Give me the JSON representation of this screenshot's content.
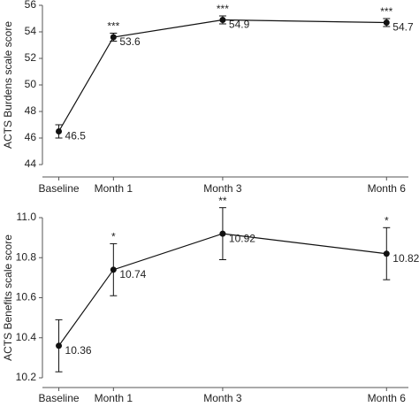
{
  "chart_data": [
    {
      "type": "line",
      "y_label": "ACTS Burdens scale score",
      "x": [
        0,
        1,
        3,
        6
      ],
      "xticks": [
        {
          "value": 0,
          "label": "Baseline"
        },
        {
          "value": 1,
          "label": "Month 1"
        },
        {
          "value": 3,
          "label": "Month 3"
        },
        {
          "value": 6,
          "label": "Month 6"
        }
      ],
      "xlim": [
        -0.3,
        6.4
      ],
      "values": [
        46.5,
        53.6,
        54.9,
        54.7
      ],
      "errors": [
        0.5,
        0.3,
        0.3,
        0.3
      ],
      "significance": [
        null,
        "***",
        "***",
        "***"
      ],
      "ylim": [
        44,
        56
      ],
      "yticks": [
        44,
        46,
        48,
        50,
        52,
        54,
        56
      ],
      "color": "#111111"
    },
    {
      "type": "line",
      "y_label": "ACTS Benefits scale score",
      "x": [
        0,
        1,
        3,
        6
      ],
      "xticks": [
        {
          "value": 0,
          "label": "Baseline"
        },
        {
          "value": 1,
          "label": "Month 1"
        },
        {
          "value": 3,
          "label": "Month 3"
        },
        {
          "value": 6,
          "label": "Month 6"
        }
      ],
      "xlim": [
        -0.3,
        6.4
      ],
      "values": [
        10.36,
        10.74,
        10.92,
        10.82
      ],
      "errors": [
        0.13,
        0.13,
        0.13,
        0.13
      ],
      "significance": [
        null,
        "*",
        "**",
        "*"
      ],
      "ylim": [
        10.2,
        11.0
      ],
      "yticks": [
        {
          "value": 10.2,
          "label": "10.2"
        },
        {
          "value": 10.4,
          "label": "10.4"
        },
        {
          "value": 10.6,
          "label": "10.6"
        },
        {
          "value": 10.8,
          "label": "10.8"
        },
        {
          "value": 11.0,
          "label": "11.0"
        }
      ],
      "color": "#111111"
    }
  ]
}
